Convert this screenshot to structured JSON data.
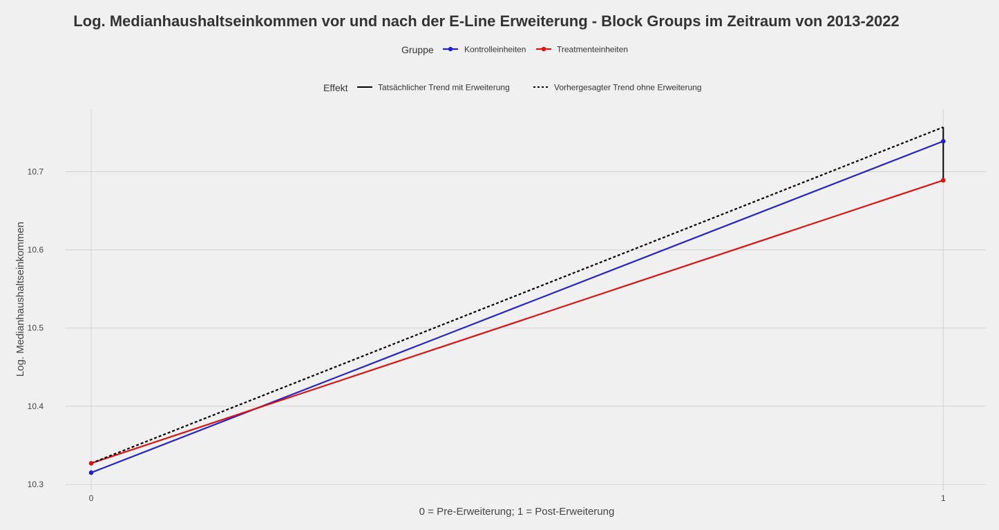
{
  "chart_data": {
    "type": "line",
    "title": "Log. Medianhaushaltseinkommen vor und nach der E-Line Erweiterung - Block Groups im Zeitraum von 2013-2022",
    "xlabel": "0 = Pre-Erweiterung; 1 = Post-Erweiterung",
    "ylabel": "Log. Medianhaushaltseinkommen",
    "x": [
      0,
      1
    ],
    "x_ticks": [
      "0",
      "1"
    ],
    "y_ticks": [
      "10.3",
      "10.4",
      "10.5",
      "10.6",
      "10.7"
    ],
    "xlim": [
      -0.03,
      1.05
    ],
    "ylim": [
      10.292,
      10.78
    ],
    "grid": true,
    "legends": {
      "gruppe": {
        "title": "Gruppe",
        "placement": "top",
        "entries": [
          {
            "label": "Kontrolleinheiten",
            "color": "#2222cc"
          },
          {
            "label": "Treatmenteinheiten",
            "color": "#dd1111"
          }
        ]
      },
      "effekt": {
        "title": "Effekt",
        "placement": "top",
        "entries": [
          {
            "label": "Tatsächlicher Trend mit Erweiterung",
            "linetype": "solid"
          },
          {
            "label": "Vorhergesagter Trend ohne Erweiterung",
            "linetype": "dashed"
          }
        ]
      }
    },
    "series": [
      {
        "name": "Kontrolleinheiten",
        "values": [
          10.315,
          10.739
        ],
        "color": "#2222cc",
        "style": "solid",
        "points": true
      },
      {
        "name": "Treatmenteinheiten",
        "values": [
          10.327,
          10.689
        ],
        "color": "#dd1111",
        "style": "solid",
        "points": true
      },
      {
        "name": "Vorhergesagter Trend ohne Erweiterung",
        "values": [
          10.327,
          10.757
        ],
        "color": "#000000",
        "style": "dashed",
        "points": false
      }
    ],
    "effect_segment": {
      "x": 1,
      "y_from": 10.689,
      "y_to": 10.757,
      "color": "#000000"
    }
  }
}
